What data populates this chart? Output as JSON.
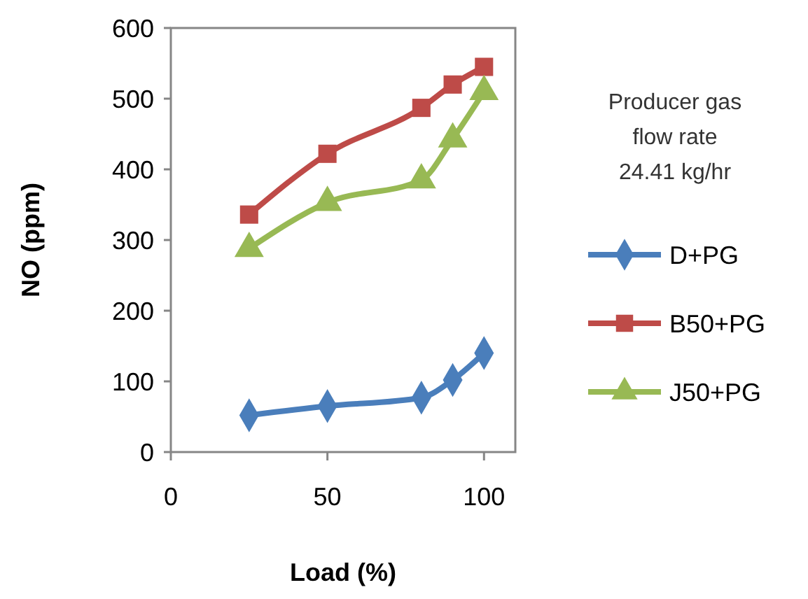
{
  "chart_data": {
    "type": "line",
    "xlabel": "Load (%)",
    "ylabel": "NO (ppm)",
    "legend_title": "Producer gas flow rate 24.41 kg/hr",
    "x": [
      25,
      50,
      80,
      90,
      100
    ],
    "xlim": [
      0,
      110
    ],
    "xticks": [
      0,
      50,
      100
    ],
    "ylim": [
      0,
      600
    ],
    "yticks": [
      0,
      100,
      200,
      300,
      400,
      500,
      600
    ],
    "grid": false,
    "legend": "right",
    "series": [
      {
        "name": "D+PG",
        "color": "#4a7ebb",
        "marker": "diamond",
        "values": [
          52,
          65,
          77,
          102,
          140
        ]
      },
      {
        "name": "B50+PG",
        "color": "#be4b48",
        "marker": "square",
        "values": [
          336,
          422,
          487,
          520,
          545
        ]
      },
      {
        "name": "J50+PG",
        "color": "#98b954",
        "marker": "triangle",
        "values": [
          288,
          353,
          385,
          443,
          510
        ]
      }
    ]
  }
}
